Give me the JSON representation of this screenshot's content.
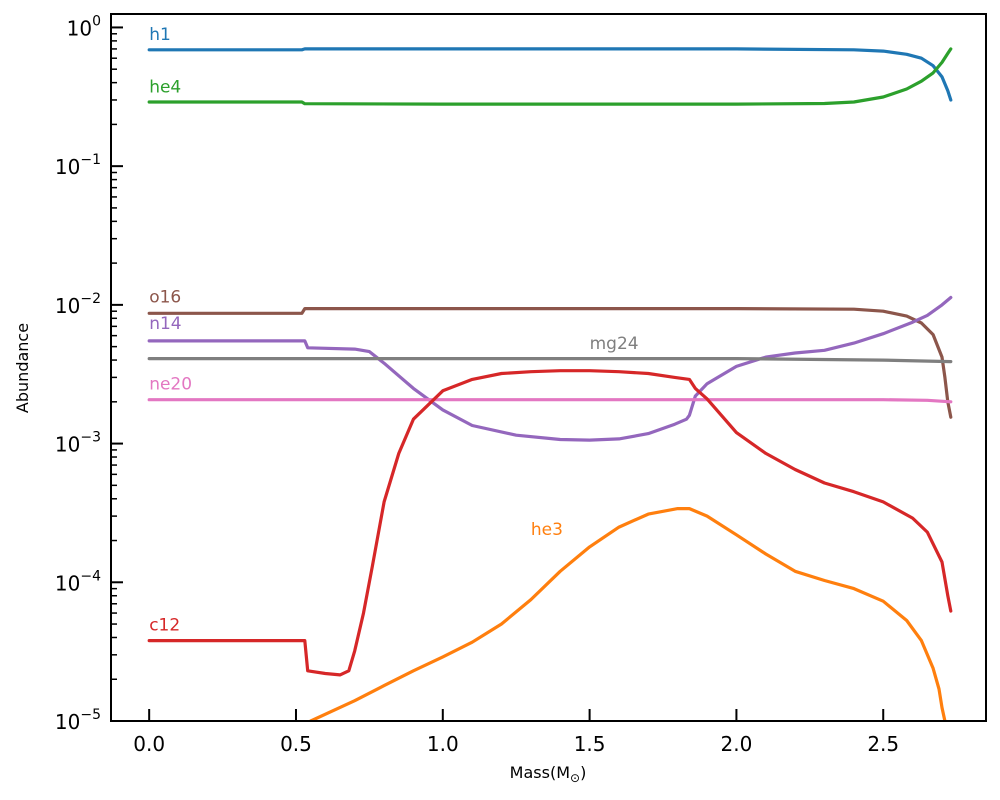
{
  "chart_data": {
    "type": "line",
    "title": "",
    "xlabel": "Mass(M",
    "xlabel_sub": "⊙",
    "xlabel_close": ")",
    "ylabel": "Abundance",
    "xlim": [
      -0.13,
      2.85
    ],
    "ylim": [
      1e-05,
      1.25
    ],
    "yscale": "log",
    "grid": false,
    "x_ticks": [
      {
        "value": 0.0,
        "label": "0.0"
      },
      {
        "value": 0.5,
        "label": "0.5"
      },
      {
        "value": 1.0,
        "label": "1.0"
      },
      {
        "value": 1.5,
        "label": "1.5"
      },
      {
        "value": 2.0,
        "label": "2.0"
      },
      {
        "value": 2.5,
        "label": "2.5"
      }
    ],
    "y_ticks": [
      {
        "value": 1,
        "base": "10",
        "exp": "0"
      },
      {
        "value": 0.1,
        "base": "10",
        "exp": "−1"
      },
      {
        "value": 0.01,
        "base": "10",
        "exp": "−2"
      },
      {
        "value": 0.001,
        "base": "10",
        "exp": "−3"
      },
      {
        "value": 0.0001,
        "base": "10",
        "exp": "−4"
      },
      {
        "value": 1e-05,
        "base": "10",
        "exp": "−5"
      }
    ],
    "series": [
      {
        "name": "h1",
        "color": "#1f77b4",
        "points": [
          [
            0,
            0.69
          ],
          [
            0.52,
            0.69
          ],
          [
            0.53,
            0.7
          ],
          [
            1.0,
            0.7
          ],
          [
            1.5,
            0.7
          ],
          [
            2.0,
            0.7
          ],
          [
            2.4,
            0.69
          ],
          [
            2.5,
            0.675
          ],
          [
            2.58,
            0.64
          ],
          [
            2.63,
            0.6
          ],
          [
            2.67,
            0.53
          ],
          [
            2.7,
            0.44
          ],
          [
            2.72,
            0.35
          ],
          [
            2.73,
            0.3
          ]
        ],
        "label_at": [
          0.0,
          0.81
        ]
      },
      {
        "name": "he4",
        "color": "#2ca02c",
        "points": [
          [
            0,
            0.29
          ],
          [
            0.52,
            0.29
          ],
          [
            0.53,
            0.282
          ],
          [
            1.0,
            0.28
          ],
          [
            1.5,
            0.28
          ],
          [
            2.0,
            0.28
          ],
          [
            2.3,
            0.283
          ],
          [
            2.4,
            0.29
          ],
          [
            2.5,
            0.315
          ],
          [
            2.58,
            0.36
          ],
          [
            2.63,
            0.41
          ],
          [
            2.67,
            0.47
          ],
          [
            2.7,
            0.56
          ],
          [
            2.72,
            0.65
          ],
          [
            2.73,
            0.7
          ]
        ],
        "label_at": [
          0.0,
          0.34
        ]
      },
      {
        "name": "o16",
        "color": "#8c564b",
        "points": [
          [
            0,
            0.0087
          ],
          [
            0.52,
            0.0087
          ],
          [
            0.53,
            0.0094
          ],
          [
            1.0,
            0.0094
          ],
          [
            1.5,
            0.0094
          ],
          [
            2.0,
            0.0094
          ],
          [
            2.4,
            0.0093
          ],
          [
            2.5,
            0.009
          ],
          [
            2.58,
            0.0083
          ],
          [
            2.63,
            0.0074
          ],
          [
            2.67,
            0.0061
          ],
          [
            2.7,
            0.0042
          ],
          [
            2.71,
            0.003
          ],
          [
            2.72,
            0.002
          ],
          [
            2.73,
            0.00155
          ]
        ],
        "label_at": [
          0.0,
          0.0104
        ]
      },
      {
        "name": "n14",
        "color": "#9467bd",
        "points": [
          [
            0,
            0.0055
          ],
          [
            0.53,
            0.0055
          ],
          [
            0.54,
            0.0049
          ],
          [
            0.7,
            0.0048
          ],
          [
            0.75,
            0.0046
          ],
          [
            0.8,
            0.0038
          ],
          [
            0.9,
            0.0025
          ],
          [
            1.0,
            0.00175
          ],
          [
            1.1,
            0.00135
          ],
          [
            1.25,
            0.00115
          ],
          [
            1.4,
            0.00107
          ],
          [
            1.5,
            0.00106
          ],
          [
            1.6,
            0.00108
          ],
          [
            1.7,
            0.00118
          ],
          [
            1.79,
            0.00138
          ],
          [
            1.83,
            0.0015
          ],
          [
            1.84,
            0.0016
          ],
          [
            1.86,
            0.0022
          ],
          [
            1.9,
            0.0027
          ],
          [
            2.0,
            0.0036
          ],
          [
            2.1,
            0.0042
          ],
          [
            2.2,
            0.0045
          ],
          [
            2.3,
            0.0047
          ],
          [
            2.4,
            0.0053
          ],
          [
            2.5,
            0.0062
          ],
          [
            2.6,
            0.0075
          ],
          [
            2.65,
            0.0084
          ],
          [
            2.7,
            0.01
          ],
          [
            2.73,
            0.0113
          ]
        ],
        "label_at": [
          0.0,
          0.0067
        ]
      },
      {
        "name": "mg24",
        "color": "#7f7f7f",
        "points": [
          [
            0,
            0.0041
          ],
          [
            1.0,
            0.0041
          ],
          [
            1.5,
            0.0041
          ],
          [
            2.0,
            0.0041
          ],
          [
            2.5,
            0.004
          ],
          [
            2.73,
            0.0039
          ]
        ],
        "label_at": [
          1.5,
          0.0048
        ]
      },
      {
        "name": "ne20",
        "color": "#e377c2",
        "points": [
          [
            0,
            0.00207
          ],
          [
            1.0,
            0.00207
          ],
          [
            1.5,
            0.00207
          ],
          [
            2.0,
            0.00207
          ],
          [
            2.5,
            0.00207
          ],
          [
            2.65,
            0.00205
          ],
          [
            2.73,
            0.002
          ]
        ],
        "label_at": [
          0.0,
          0.00245
        ]
      },
      {
        "name": "c12",
        "color": "#d62728",
        "points": [
          [
            0,
            3.8e-05
          ],
          [
            0.53,
            3.8e-05
          ],
          [
            0.54,
            2.3e-05
          ],
          [
            0.6,
            2.2e-05
          ],
          [
            0.65,
            2.15e-05
          ],
          [
            0.68,
            2.3e-05
          ],
          [
            0.7,
            3.2e-05
          ],
          [
            0.73,
            6e-05
          ],
          [
            0.76,
            0.00013
          ],
          [
            0.8,
            0.00038
          ],
          [
            0.85,
            0.00085
          ],
          [
            0.9,
            0.0015
          ],
          [
            1.0,
            0.0024
          ],
          [
            1.1,
            0.0029
          ],
          [
            1.2,
            0.0032
          ],
          [
            1.3,
            0.0033
          ],
          [
            1.4,
            0.00335
          ],
          [
            1.5,
            0.00335
          ],
          [
            1.6,
            0.0033
          ],
          [
            1.7,
            0.0032
          ],
          [
            1.79,
            0.003
          ],
          [
            1.84,
            0.0029
          ],
          [
            1.86,
            0.0025
          ],
          [
            1.9,
            0.0021
          ],
          [
            2.0,
            0.0012
          ],
          [
            2.1,
            0.00085
          ],
          [
            2.2,
            0.00065
          ],
          [
            2.3,
            0.00052
          ],
          [
            2.4,
            0.00045
          ],
          [
            2.5,
            0.00038
          ],
          [
            2.6,
            0.00029
          ],
          [
            2.65,
            0.00023
          ],
          [
            2.7,
            0.00014
          ],
          [
            2.72,
            8e-05
          ],
          [
            2.73,
            6.2e-05
          ]
        ],
        "label_at": [
          0.0,
          4.5e-05
        ]
      },
      {
        "name": "he3",
        "color": "#ff7f0e",
        "points": [
          [
            0.55,
            1e-05
          ],
          [
            0.7,
            1.4e-05
          ],
          [
            0.8,
            1.8e-05
          ],
          [
            0.9,
            2.3e-05
          ],
          [
            1.0,
            2.9e-05
          ],
          [
            1.1,
            3.7e-05
          ],
          [
            1.2,
            5e-05
          ],
          [
            1.3,
            7.5e-05
          ],
          [
            1.4,
            0.00012
          ],
          [
            1.5,
            0.00018
          ],
          [
            1.6,
            0.00025
          ],
          [
            1.7,
            0.00031
          ],
          [
            1.8,
            0.00034
          ],
          [
            1.84,
            0.00034
          ],
          [
            1.9,
            0.0003
          ],
          [
            2.0,
            0.00022
          ],
          [
            2.1,
            0.00016
          ],
          [
            2.2,
            0.00012
          ],
          [
            2.3,
            0.000103
          ],
          [
            2.4,
            9e-05
          ],
          [
            2.5,
            7.3e-05
          ],
          [
            2.58,
            5.3e-05
          ],
          [
            2.63,
            3.8e-05
          ],
          [
            2.67,
            2.4e-05
          ],
          [
            2.69,
            1.7e-05
          ],
          [
            2.7,
            1.25e-05
          ],
          [
            2.71,
            1e-05
          ]
        ],
        "label_at": [
          1.3,
          0.00022
        ]
      }
    ]
  }
}
